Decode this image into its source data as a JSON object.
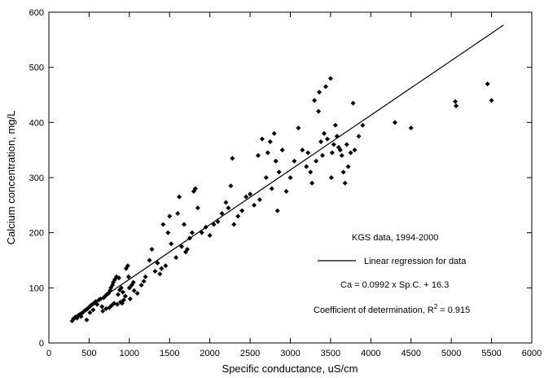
{
  "chart_data": {
    "type": "scatter",
    "title": "",
    "xlabel": "Specific conductance, uS/cm",
    "ylabel": "Calcium concentration, mg/L",
    "xlim": [
      0,
      6000
    ],
    "ylim": [
      0,
      600
    ],
    "xticks": [
      0,
      500,
      1000,
      1500,
      2000,
      2500,
      3000,
      3500,
      4000,
      4500,
      5000,
      5500,
      6000
    ],
    "yticks": [
      0,
      100,
      200,
      300,
      400,
      500,
      600
    ],
    "grid": false,
    "annotations": {
      "source": "KGS data, 1994-2000",
      "legend_line": "Linear regression for data",
      "equation": "Ca = 0.0992 x Sp.C. + 16.3",
      "r2_prefix": "Coefficient of determination, R",
      "r2_sup": "2",
      "r2_suffix": " = 0.915"
    },
    "regression": {
      "slope": 0.0992,
      "intercept": 16.3,
      "x_range": [
        280,
        5650
      ]
    },
    "points": [
      [
        290,
        40
      ],
      [
        310,
        44
      ],
      [
        330,
        47
      ],
      [
        350,
        45
      ],
      [
        370,
        50
      ],
      [
        390,
        52
      ],
      [
        400,
        48
      ],
      [
        420,
        55
      ],
      [
        440,
        58
      ],
      [
        460,
        60
      ],
      [
        470,
        42
      ],
      [
        480,
        62
      ],
      [
        500,
        65
      ],
      [
        510,
        55
      ],
      [
        520,
        68
      ],
      [
        540,
        70
      ],
      [
        550,
        60
      ],
      [
        560,
        72
      ],
      [
        580,
        75
      ],
      [
        600,
        70
      ],
      [
        620,
        78
      ],
      [
        640,
        80
      ],
      [
        660,
        66
      ],
      [
        670,
        58
      ],
      [
        680,
        82
      ],
      [
        700,
        85
      ],
      [
        710,
        62
      ],
      [
        720,
        88
      ],
      [
        740,
        90
      ],
      [
        750,
        64
      ],
      [
        760,
        95
      ],
      [
        770,
        100
      ],
      [
        780,
        68
      ],
      [
        790,
        105
      ],
      [
        800,
        110
      ],
      [
        810,
        72
      ],
      [
        820,
        115
      ],
      [
        840,
        120
      ],
      [
        850,
        70
      ],
      [
        860,
        88
      ],
      [
        870,
        118
      ],
      [
        880,
        96
      ],
      [
        890,
        74
      ],
      [
        900,
        100
      ],
      [
        910,
        72
      ],
      [
        920,
        92
      ],
      [
        930,
        78
      ],
      [
        950,
        85
      ],
      [
        960,
        135
      ],
      [
        980,
        140
      ],
      [
        990,
        120
      ],
      [
        1000,
        100
      ],
      [
        1010,
        80
      ],
      [
        1030,
        105
      ],
      [
        1050,
        110
      ],
      [
        1060,
        95
      ],
      [
        1100,
        90
      ],
      [
        1150,
        105
      ],
      [
        1180,
        112
      ],
      [
        1200,
        120
      ],
      [
        1250,
        150
      ],
      [
        1280,
        170
      ],
      [
        1320,
        130
      ],
      [
        1350,
        145
      ],
      [
        1380,
        125
      ],
      [
        1400,
        135
      ],
      [
        1420,
        215
      ],
      [
        1450,
        140
      ],
      [
        1480,
        200
      ],
      [
        1500,
        230
      ],
      [
        1520,
        180
      ],
      [
        1580,
        155
      ],
      [
        1600,
        235
      ],
      [
        1620,
        265
      ],
      [
        1650,
        175
      ],
      [
        1680,
        215
      ],
      [
        1700,
        165
      ],
      [
        1720,
        170
      ],
      [
        1750,
        190
      ],
      [
        1780,
        200
      ],
      [
        1800,
        275
      ],
      [
        1820,
        280
      ],
      [
        1850,
        245
      ],
      [
        1900,
        200
      ],
      [
        1950,
        210
      ],
      [
        2000,
        195
      ],
      [
        2050,
        215
      ],
      [
        2100,
        220
      ],
      [
        2150,
        235
      ],
      [
        2200,
        255
      ],
      [
        2230,
        245
      ],
      [
        2260,
        285
      ],
      [
        2280,
        335
      ],
      [
        2300,
        215
      ],
      [
        2350,
        230
      ],
      [
        2400,
        240
      ],
      [
        2450,
        265
      ],
      [
        2500,
        270
      ],
      [
        2550,
        250
      ],
      [
        2600,
        340
      ],
      [
        2620,
        260
      ],
      [
        2650,
        370
      ],
      [
        2700,
        300
      ],
      [
        2720,
        345
      ],
      [
        2750,
        365
      ],
      [
        2770,
        280
      ],
      [
        2800,
        380
      ],
      [
        2820,
        330
      ],
      [
        2840,
        240
      ],
      [
        2860,
        310
      ],
      [
        2900,
        350
      ],
      [
        2950,
        275
      ],
      [
        3000,
        300
      ],
      [
        3050,
        330
      ],
      [
        3100,
        390
      ],
      [
        3150,
        350
      ],
      [
        3200,
        320
      ],
      [
        3220,
        345
      ],
      [
        3250,
        310
      ],
      [
        3270,
        290
      ],
      [
        3300,
        440
      ],
      [
        3320,
        330
      ],
      [
        3350,
        420
      ],
      [
        3360,
        455
      ],
      [
        3380,
        365
      ],
      [
        3400,
        340
      ],
      [
        3420,
        380
      ],
      [
        3440,
        465
      ],
      [
        3460,
        370
      ],
      [
        3500,
        480
      ],
      [
        3510,
        300
      ],
      [
        3520,
        345
      ],
      [
        3540,
        360
      ],
      [
        3560,
        395
      ],
      [
        3580,
        375
      ],
      [
        3600,
        355
      ],
      [
        3620,
        350
      ],
      [
        3640,
        340
      ],
      [
        3660,
        310
      ],
      [
        3680,
        290
      ],
      [
        3700,
        360
      ],
      [
        3720,
        320
      ],
      [
        3750,
        345
      ],
      [
        3780,
        435
      ],
      [
        3800,
        350
      ],
      [
        3850,
        375
      ],
      [
        3900,
        395
      ],
      [
        4300,
        400
      ],
      [
        4500,
        390
      ],
      [
        5050,
        438
      ],
      [
        5060,
        430
      ],
      [
        5450,
        470
      ],
      [
        5500,
        440
      ]
    ]
  }
}
